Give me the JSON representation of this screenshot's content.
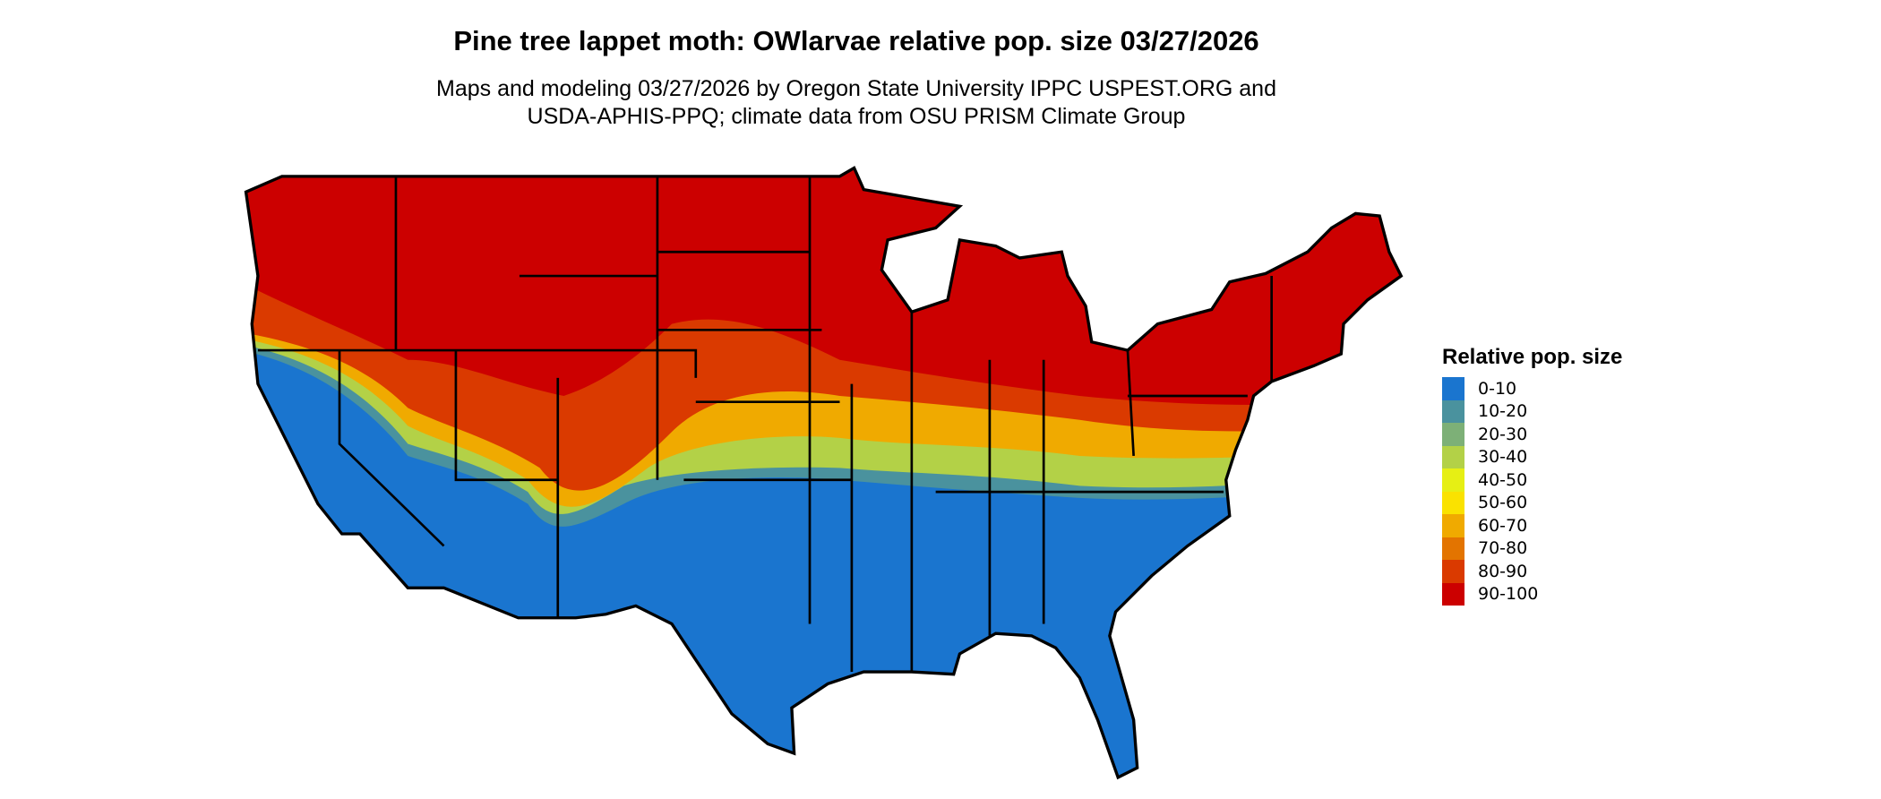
{
  "title": "Pine tree lappet moth: OWlarvae relative pop. size 03/27/2026",
  "subtitle_line1": "Maps and modeling 03/27/2026 by Oregon State University IPPC USPEST.ORG and",
  "subtitle_line2": "USDA-APHIS-PPQ; climate data from OSU PRISM Climate Group",
  "legend": {
    "title": "Relative pop. size",
    "items": [
      {
        "label": "0-10",
        "color": "#1a75cf"
      },
      {
        "label": "10-20",
        "color": "#4a929e"
      },
      {
        "label": "20-30",
        "color": "#7db077"
      },
      {
        "label": "30-40",
        "color": "#b3d147"
      },
      {
        "label": "40-50",
        "color": "#e6ef14"
      },
      {
        "label": "50-60",
        "color": "#fae200"
      },
      {
        "label": "60-70",
        "color": "#f0aa00"
      },
      {
        "label": "70-80",
        "color": "#e37400"
      },
      {
        "label": "80-90",
        "color": "#da3a00"
      },
      {
        "label": "90-100",
        "color": "#cc0000"
      }
    ]
  }
}
